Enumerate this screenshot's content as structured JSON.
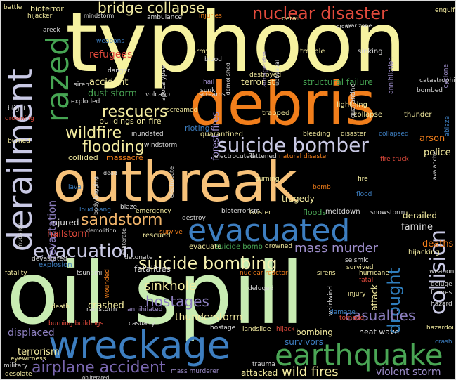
{
  "cloud": {
    "words": [
      {
        "text": "typhoon",
        "color": "#f6f2a0"
      },
      {
        "text": "oil spill",
        "color": "#c8ecb2"
      },
      {
        "text": "outbreak",
        "color": "#f7c27a"
      },
      {
        "text": "debris",
        "color": "#f17e1b"
      },
      {
        "text": "derailment",
        "color": "#c9c9e4"
      },
      {
        "text": "razed",
        "color": "#46a553"
      },
      {
        "text": "wreckage",
        "color": "#3d7ec0"
      },
      {
        "text": "evacuated",
        "color": "#3d7ec0"
      },
      {
        "text": "earthquake",
        "color": "#4aa655"
      },
      {
        "text": "nuclear disaster",
        "color": "#e14a3c"
      },
      {
        "text": "bridge collapse",
        "color": "#f3eca2"
      },
      {
        "text": "suicide bomber",
        "color": "#c9c9e4"
      },
      {
        "text": "suicide bombing",
        "color": "#f5f0b0"
      },
      {
        "text": "evacuation",
        "color": "#c9c9e4"
      },
      {
        "text": "sandstorm",
        "color": "#f1b46a"
      },
      {
        "text": "collision",
        "color": "#c9c9e4"
      },
      {
        "text": "drought",
        "color": "#2f7ebd"
      },
      {
        "text": "airplane accident",
        "color": "#7a67b0"
      },
      {
        "text": "wildfire",
        "color": "#f4eca0"
      },
      {
        "text": "flooding",
        "color": "#f4eca0"
      },
      {
        "text": "rescuers",
        "color": "#f4eca0"
      },
      {
        "text": "mass murder",
        "color": "#9e8ecb"
      },
      {
        "text": "casualties",
        "color": "#8d7fc0"
      },
      {
        "text": "hostages",
        "color": "#8d7fc0"
      },
      {
        "text": "sinkhole",
        "color": "#f4eca0"
      },
      {
        "text": "devastation",
        "color": "#8d7fc0"
      },
      {
        "text": "refugees",
        "color": "#e14a3c"
      },
      {
        "text": "wild fires",
        "color": "#f4eca0"
      },
      {
        "text": "violent storm",
        "color": "#9e8ecb"
      },
      {
        "text": "thunderstorm",
        "color": "#f4eca0"
      },
      {
        "text": "terrorism",
        "color": "#f4eca0"
      },
      {
        "text": "displaced",
        "color": "#8d7fc0"
      },
      {
        "text": "crashed",
        "color": "#f4eca0"
      },
      {
        "text": "injured",
        "color": "#d9d9d9"
      },
      {
        "text": "fatalities",
        "color": "#d9d9d9"
      },
      {
        "text": "famine",
        "color": "#d9d9d9"
      },
      {
        "text": "deaths",
        "color": "#f17e1b"
      },
      {
        "text": "derailed",
        "color": "#f4eca0"
      },
      {
        "text": "police",
        "color": "#f4eca0"
      },
      {
        "text": "arson",
        "color": "#f17e1b"
      },
      {
        "text": "forest fires",
        "color": "#9e8ecb"
      },
      {
        "text": "dust storm",
        "color": "#4aa655"
      },
      {
        "text": "accident",
        "color": "#f4eca0"
      },
      {
        "text": "hailstorm",
        "color": "#e14a3c"
      },
      {
        "text": "floods",
        "color": "#4aa655"
      },
      {
        "text": "meltdown",
        "color": "#d9d9d9"
      },
      {
        "text": "tragedy",
        "color": "#f4eca0"
      },
      {
        "text": "collided",
        "color": "#f4eca0"
      },
      {
        "text": "massacre",
        "color": "#f17e1b"
      },
      {
        "text": "buildings on fire",
        "color": "#f4eca0"
      },
      {
        "text": "survivors",
        "color": "#3d7ec0"
      },
      {
        "text": "bombing",
        "color": "#f4eca0"
      },
      {
        "text": "heat wave",
        "color": "#d9d9d9"
      },
      {
        "text": "attacked",
        "color": "#f4eca0"
      },
      {
        "text": "mass murderer",
        "color": "#9e8ecb"
      },
      {
        "text": "explosion",
        "color": "#3d7ec0"
      },
      {
        "text": "rescued",
        "color": "#f4eca0"
      },
      {
        "text": "hijacking",
        "color": "#f4eca0"
      },
      {
        "text": "terrorist",
        "color": "#f4eca0"
      },
      {
        "text": "structural failure",
        "color": "#46a553"
      },
      {
        "text": "bioterror",
        "color": "#f4eca0"
      },
      {
        "text": "battle",
        "color": "#f4eca0"
      },
      {
        "text": "hijacker",
        "color": "#f4eca0"
      },
      {
        "text": "mindstorm",
        "color": "#d9d9d9"
      },
      {
        "text": "ambulance",
        "color": "#d9d9d9"
      },
      {
        "text": "injuries",
        "color": "#f17e1b"
      },
      {
        "text": "derail",
        "color": "#f4eca0"
      },
      {
        "text": "engulfed",
        "color": "#f4eca0"
      },
      {
        "text": "army",
        "color": "#f4eca0"
      },
      {
        "text": "sinking",
        "color": "#d9d9d9"
      },
      {
        "text": "trouble",
        "color": "#f4eca0"
      },
      {
        "text": "lightning",
        "color": "#f4eca0"
      },
      {
        "text": "collapse",
        "color": "#f4eca0"
      },
      {
        "text": "thunder",
        "color": "#f4eca0"
      },
      {
        "text": "trapped",
        "color": "#f4eca0"
      },
      {
        "text": "quarantined",
        "color": "#f4eca0"
      },
      {
        "text": "electrocuted",
        "color": "#d9d9d9"
      },
      {
        "text": "flattened",
        "color": "#d9d9d9"
      },
      {
        "text": "natural disaster",
        "color": "#f17e1b"
      },
      {
        "text": "fire truck",
        "color": "#e14a3c"
      },
      {
        "text": "bleeding",
        "color": "#f4eca0"
      },
      {
        "text": "disaster",
        "color": "#f4eca0"
      },
      {
        "text": "collapsed",
        "color": "#3d7ec0"
      },
      {
        "text": "burning",
        "color": "#f4eca0"
      },
      {
        "text": "fire",
        "color": "#f4eca0"
      },
      {
        "text": "bomb",
        "color": "#f17e1b"
      },
      {
        "text": "flood",
        "color": "#3d7ec0"
      },
      {
        "text": "twister",
        "color": "#f4eca0"
      },
      {
        "text": "bioterrorism",
        "color": "#d9d9d9"
      },
      {
        "text": "snowstorm",
        "color": "#d9d9d9"
      },
      {
        "text": "emergency",
        "color": "#f4eca0"
      },
      {
        "text": "destroy",
        "color": "#d9d9d9"
      },
      {
        "text": "survive",
        "color": "#f17e1b"
      },
      {
        "text": "evacuate",
        "color": "#f4eca0"
      },
      {
        "text": "suicide bomb",
        "color": "#4aa655"
      },
      {
        "text": "drowned",
        "color": "#f4eca0"
      },
      {
        "text": "nuclear reactor",
        "color": "#f17e1b"
      },
      {
        "text": "seismic",
        "color": "#d9d9d9"
      },
      {
        "text": "survived",
        "color": "#f4eca0"
      },
      {
        "text": "sirens",
        "color": "#f4eca0"
      },
      {
        "text": "hurricane",
        "color": "#f4eca0"
      },
      {
        "text": "fatal",
        "color": "#e14a3c"
      },
      {
        "text": "deluge",
        "color": "#d9d9d9"
      },
      {
        "text": "flames",
        "color": "#d9d9d9"
      },
      {
        "text": "hazard",
        "color": "#d9d9d9"
      },
      {
        "text": "weapon",
        "color": "#d9d9d9"
      },
      {
        "text": "injury",
        "color": "#f4eca0"
      },
      {
        "text": "attack",
        "color": "#f4eca0"
      },
      {
        "text": "deluged",
        "color": "#d9d9d9"
      },
      {
        "text": "whirlwind",
        "color": "#d9d9d9"
      },
      {
        "text": "tornado",
        "color": "#e14a3c"
      },
      {
        "text": "damage",
        "color": "#3d7ec0"
      },
      {
        "text": "burning buildings",
        "color": "#e14a3c"
      },
      {
        "text": "casualty",
        "color": "#d9d9d9"
      },
      {
        "text": "landslide",
        "color": "#f4eca0"
      },
      {
        "text": "hostage",
        "color": "#d9d9d9"
      },
      {
        "text": "hijack",
        "color": "#e14a3c"
      },
      {
        "text": "hazardous",
        "color": "#f4eca0"
      },
      {
        "text": "crash",
        "color": "#3d7ec0"
      },
      {
        "text": "death",
        "color": "#f4eca0"
      },
      {
        "text": "rainstorm",
        "color": "#d9d9d9"
      },
      {
        "text": "annihilated",
        "color": "#9e8ecb"
      },
      {
        "text": "tsunami",
        "color": "#d9d9d9"
      },
      {
        "text": "fatality",
        "color": "#f4eca0"
      },
      {
        "text": "devastated",
        "color": "#d9d9d9"
      },
      {
        "text": "wounded",
        "color": "#f17e1b"
      },
      {
        "text": "detonate",
        "color": "#d9d9d9"
      },
      {
        "text": "demolition",
        "color": "#d9d9d9"
      },
      {
        "text": "obliterate",
        "color": "#d9d9d9"
      },
      {
        "text": "loud bang",
        "color": "#3d7ec0"
      },
      {
        "text": "blaze",
        "color": "#d9d9d9"
      },
      {
        "text": "lava",
        "color": "#3d7ec0"
      },
      {
        "text": "body bagging",
        "color": "#d9d9d9"
      },
      {
        "text": "dead",
        "color": "#d9d9d9"
      },
      {
        "text": "rioting",
        "color": "#3d7ec0"
      },
      {
        "text": "inundated",
        "color": "#d9d9d9"
      },
      {
        "text": "windstorm",
        "color": "#d9d9d9"
      },
      {
        "text": "burned",
        "color": "#f4eca0"
      },
      {
        "text": "drowning",
        "color": "#e14a3c"
      },
      {
        "text": "volcano",
        "color": "#d9d9d9"
      },
      {
        "text": "exploded",
        "color": "#d9d9d9"
      },
      {
        "text": "siren",
        "color": "#d9d9d9"
      },
      {
        "text": "hail",
        "color": "#9e8ecb"
      },
      {
        "text": "sunk",
        "color": "#d9d9d9"
      },
      {
        "text": "bombed",
        "color": "#d9d9d9"
      },
      {
        "text": "catastrophic",
        "color": "#d9d9d9"
      },
      {
        "text": "destroyed",
        "color": "#f4eca0"
      },
      {
        "text": "demolished",
        "color": "#d9d9d9"
      },
      {
        "text": "blood",
        "color": "#d9d9d9"
      },
      {
        "text": "weapons",
        "color": "#3d7ec0"
      },
      {
        "text": "danger",
        "color": "#d9d9d9"
      },
      {
        "text": "areck",
        "color": "#d9d9d9"
      },
      {
        "text": "cyclone",
        "color": "#9e8ecb"
      },
      {
        "text": "desolate",
        "color": "#f4eca0"
      },
      {
        "text": "military",
        "color": "#d9d9d9"
      },
      {
        "text": "eyewitness",
        "color": "#f4eca0"
      },
      {
        "text": "trauma",
        "color": "#d9d9d9"
      },
      {
        "text": "obliterated",
        "color": "#d9d9d9"
      },
      {
        "text": "annihilation",
        "color": "#9e8ecb"
      },
      {
        "text": "armageddon",
        "color": "#9e8ecb"
      },
      {
        "text": "apocalypse",
        "color": "#d9d9d9"
      },
      {
        "text": "upheaval",
        "color": "#d9d9d9"
      },
      {
        "text": "quarantine",
        "color": "#d9d9d9"
      },
      {
        "text": "war zone",
        "color": "#d9d9d9"
      },
      {
        "text": "drown",
        "color": "#d9d9d9"
      },
      {
        "text": "ablaze",
        "color": "#3d7ec0"
      },
      {
        "text": "avalanche",
        "color": "#d9d9d9"
      },
      {
        "text": "electrocute",
        "color": "#d9d9d9"
      },
      {
        "text": "screamed",
        "color": "#f4eca0"
      },
      {
        "text": "screams",
        "color": "#d9d9d9"
      },
      {
        "text": "blight",
        "color": "#d9d9d9"
      },
      {
        "text": "mudslide",
        "color": "#d9d9d9"
      }
    ]
  }
}
